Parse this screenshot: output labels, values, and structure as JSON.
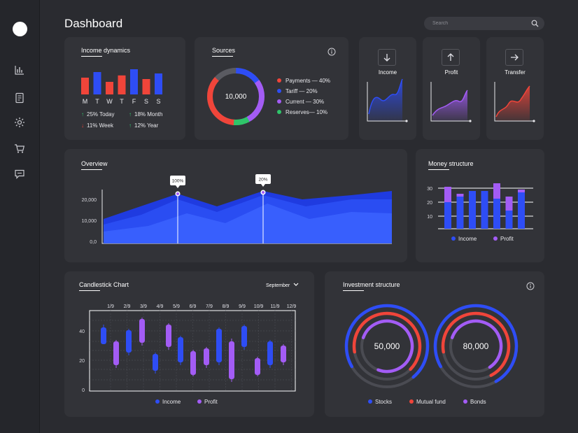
{
  "header": {
    "title": "Dashboard",
    "search_placeholder": "Search"
  },
  "sidebar": {
    "items": [
      "bar-chart-icon",
      "document-icon",
      "gear-icon",
      "cart-icon",
      "chat-icon"
    ]
  },
  "colors": {
    "blue": "#2e4df5",
    "red": "#f0453a",
    "purple": "#a35cf5",
    "green": "#2fc56a",
    "gray": "#5a5b62"
  },
  "income_dynamics": {
    "title": "Income dynamics",
    "days": [
      "M",
      "T",
      "W",
      "T",
      "F",
      "S",
      "S"
    ],
    "bar_values": [
      0.6,
      0.8,
      0.45,
      0.68,
      0.9,
      0.55,
      0.75
    ],
    "bar_colors": [
      "red",
      "blue",
      "red",
      "red",
      "blue",
      "red",
      "blue"
    ],
    "stats": [
      {
        "dir": "up",
        "label": "25% Today"
      },
      {
        "dir": "up",
        "label": "18% Month"
      },
      {
        "dir": "down",
        "label": "11% Week"
      },
      {
        "dir": "up",
        "label": "12% Year"
      }
    ]
  },
  "sources": {
    "title": "Sources",
    "center": "10,000",
    "items": [
      {
        "label": "Payments — 40%",
        "color": "red",
        "pct": 40
      },
      {
        "label": "Tariff — 20%",
        "color": "blue",
        "pct": 20
      },
      {
        "label": "Current — 30%",
        "color": "purple",
        "pct": 30
      },
      {
        "label": "Reserves— 10%",
        "color": "green",
        "pct": 10
      }
    ]
  },
  "mini_cards": [
    {
      "label": "Income",
      "arrow": "down",
      "color": "blue"
    },
    {
      "label": "Profit",
      "arrow": "up",
      "color": "purple"
    },
    {
      "label": "Transfer",
      "arrow": "right",
      "color": "red"
    }
  ],
  "overview": {
    "title": "Overview",
    "y_ticks": [
      "20,000",
      "10,000",
      "0,0"
    ],
    "markers": [
      "100%",
      "20%"
    ]
  },
  "money_structure": {
    "title": "Money structure",
    "y_ticks": [
      "30",
      "20",
      "10"
    ],
    "legend": [
      "Income",
      "Profit"
    ]
  },
  "candlestick": {
    "title": "Candlestick Chart",
    "period": "September",
    "dates": [
      "1/9",
      "2/9",
      "3/9",
      "4/9",
      "5/9",
      "6/9",
      "7/9",
      "8/9",
      "9/9",
      "10/9",
      "11/9",
      "12/9"
    ],
    "y_ticks": [
      "40",
      "20",
      "0"
    ],
    "legend": [
      "Income",
      "Profit"
    ]
  },
  "investment": {
    "title": "Investment structure",
    "gauges": [
      "50,000",
      "80,000"
    ],
    "legend": [
      {
        "label": "Stocks",
        "color": "blue"
      },
      {
        "label": "Mutual fund",
        "color": "red"
      },
      {
        "label": "Bonds",
        "color": "purple"
      }
    ]
  }
}
